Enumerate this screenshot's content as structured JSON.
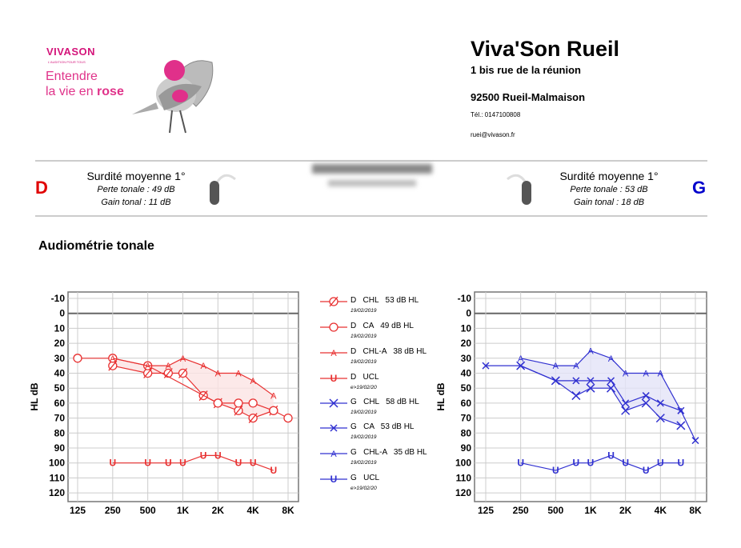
{
  "header": {
    "brand": "VIVASON",
    "brand_tagline": "L'AUDITION POUR TOUS",
    "slogan_line1": "Entendre",
    "slogan_line2_prefix": "la vie en ",
    "slogan_line2_bold": "rose",
    "shop_name": "Viva'Son Rueil",
    "address1": "1 bis rue de la réunion",
    "address2": "92500 Rueil-Malmaison",
    "tel": "Tél.: 0147100808",
    "email": "ruei@vivason.fr"
  },
  "summary": {
    "right": {
      "ear": "D",
      "severity": "Surdité moyenne 1°",
      "loss": "Perte tonale : 49 dB",
      "gain": "Gain tonal : 11 dB",
      "color": "#e00000"
    },
    "left": {
      "ear": "G",
      "severity": "Surdité moyenne 1°",
      "loss": "Perte tonale : 53 dB",
      "gain": "Gain tonal : 18 dB",
      "color": "#0000cc"
    }
  },
  "section_title": "Audiométrie tonale",
  "legend": [
    {
      "text": "D   CHL   53 dB HL",
      "date": "19/02/2019",
      "symbol": "slash-circle",
      "color": "#e83030"
    },
    {
      "text": "D   CA   49 dB HL",
      "date": "19/02/2019",
      "symbol": "circle",
      "color": "#e83030"
    },
    {
      "text": "D   CHL-A   38 dB HL",
      "date": "19/02/2019",
      "symbol": "A",
      "color": "#e83030"
    },
    {
      "text": "D   UCL",
      "date": "e>19/02/20",
      "symbol": "U",
      "color": "#e83030"
    },
    {
      "text": "G   CHL   58 dB HL",
      "date": "19/02/2019",
      "symbol": "X",
      "color": "#3030d0"
    },
    {
      "text": "G   CA   53 dB HL",
      "date": "19/02/2019",
      "symbol": "x",
      "color": "#3030d0"
    },
    {
      "text": "G   CHL-A   35 dB HL",
      "date": "19/02/2019",
      "symbol": "A",
      "color": "#3030d0"
    },
    {
      "text": "G   UCL",
      "date": "e>19/02/20",
      "symbol": "U",
      "color": "#3030d0"
    }
  ],
  "chart_data": [
    {
      "type": "line",
      "ear": "D",
      "ylabel": "HL dB",
      "ylim": [
        -10,
        120
      ],
      "yticks": [
        "-10",
        "0",
        "10",
        "20",
        "30",
        "40",
        "50",
        "60",
        "70",
        "80",
        "90",
        "100",
        "110",
        "120"
      ],
      "categories": [
        "125",
        "250",
        "500",
        "750",
        "1K",
        "1.5K",
        "2K",
        "3K",
        "4K",
        "6K",
        "8K"
      ],
      "xtick_labels": [
        "125",
        "250",
        "500",
        "1K",
        "2K",
        "4K",
        "8K"
      ],
      "color": "#e83030",
      "fill": "#fbe3e3",
      "series": [
        {
          "name": "CHL",
          "symbol": "slash-circle",
          "values": [
            null,
            35,
            40,
            40,
            40,
            55,
            60,
            65,
            70,
            65,
            null
          ]
        },
        {
          "name": "CA",
          "symbol": "circle",
          "values": [
            30,
            30,
            35,
            null,
            null,
            null,
            60,
            60,
            60,
            65,
            70
          ]
        },
        {
          "name": "CHL-A",
          "symbol": "A",
          "values": [
            null,
            30,
            35,
            35,
            30,
            35,
            40,
            40,
            45,
            55,
            null
          ]
        },
        {
          "name": "UCL",
          "symbol": "U",
          "values": [
            null,
            100,
            100,
            100,
            100,
            95,
            95,
            100,
            100,
            105,
            null
          ]
        }
      ]
    },
    {
      "type": "line",
      "ear": "G",
      "ylabel": "HL dB",
      "ylim": [
        -10,
        120
      ],
      "yticks": [
        "-10",
        "0",
        "10",
        "20",
        "30",
        "40",
        "50",
        "60",
        "70",
        "80",
        "90",
        "100",
        "110",
        "120"
      ],
      "categories": [
        "125",
        "250",
        "500",
        "750",
        "1K",
        "1.5K",
        "2K",
        "3K",
        "4K",
        "6K",
        "8K"
      ],
      "xtick_labels": [
        "125",
        "250",
        "500",
        "1K",
        "2K",
        "4K",
        "8K"
      ],
      "color": "#3030d0",
      "fill": "#e3e3f7",
      "series": [
        {
          "name": "CHL",
          "symbol": "X",
          "values": [
            null,
            35,
            45,
            55,
            50,
            50,
            65,
            60,
            70,
            75,
            null
          ]
        },
        {
          "name": "CA",
          "symbol": "x",
          "values": [
            35,
            35,
            45,
            45,
            45,
            45,
            60,
            55,
            60,
            65,
            85
          ]
        },
        {
          "name": "CHL-A",
          "symbol": "A",
          "values": [
            null,
            30,
            35,
            35,
            25,
            30,
            40,
            40,
            40,
            65,
            null
          ]
        },
        {
          "name": "UCL",
          "symbol": "U",
          "values": [
            null,
            100,
            105,
            100,
            100,
            95,
            100,
            105,
            100,
            100,
            null
          ]
        }
      ]
    }
  ]
}
